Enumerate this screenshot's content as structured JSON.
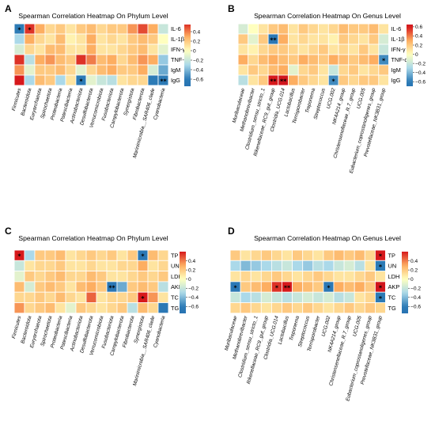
{
  "chart_data": [
    {
      "panel": "A",
      "type": "heatmap",
      "title": "Spearman Correlation Heatmap On Phylum Level",
      "rows": [
        "IL-6",
        "IL-1β",
        "IFN-γ",
        "TNF-α",
        "IgM",
        "IgG"
      ],
      "columns": [
        "Firmicutes",
        "Bacteroidota",
        "Euryarchaeota",
        "Spirochaetota",
        "Proteobacteria",
        "Patescibacteria",
        "Actinobacteriota",
        "Desulfobacterota",
        "Verrucomicrobiota",
        "Fusobacteriota",
        "Campylobacterota",
        "Synergistota",
        "Fibrobacterota",
        "Marinimicrobia__SAR406_clade",
        "Cyanobacteria"
      ],
      "values": [
        [
          -0.6,
          0.55,
          0.3,
          0.15,
          0.2,
          0.1,
          0.2,
          0.25,
          0.15,
          0.2,
          0.2,
          0.35,
          0.5,
          0.3,
          -0.2
        ],
        [
          -0.3,
          0.3,
          0.15,
          0.1,
          0.25,
          0.05,
          0.1,
          0.3,
          0.1,
          0.15,
          0.1,
          0.2,
          0.25,
          0.2,
          0.0
        ],
        [
          -0.15,
          0.15,
          0.1,
          0.25,
          0.25,
          0.1,
          0.1,
          0.3,
          0.1,
          0.1,
          0.15,
          0.2,
          0.25,
          0.1,
          -0.1
        ],
        [
          0.55,
          -0.25,
          0.3,
          0.35,
          0.25,
          0.2,
          0.55,
          0.4,
          0.25,
          0.3,
          0.15,
          0.25,
          0.35,
          0.3,
          -0.35
        ],
        [
          0.35,
          -0.1,
          0.2,
          0.2,
          0.25,
          0.15,
          -0.1,
          0.15,
          0.25,
          0.3,
          0.2,
          0.2,
          0.3,
          -0.15,
          -0.45
        ],
        [
          0.6,
          -0.3,
          0.25,
          0.2,
          -0.3,
          0.1,
          -0.6,
          -0.1,
          -0.2,
          -0.25,
          0.1,
          0.15,
          0.15,
          -0.6,
          -0.6
        ]
      ],
      "significance": [
        [
          "*",
          "*",
          "",
          "",
          "",
          "",
          "",
          "",
          "",
          "",
          "",
          "",
          "",
          "",
          ""
        ],
        [
          "",
          "",
          "",
          "",
          "",
          "",
          "",
          "",
          "",
          "",
          "",
          "",
          "",
          "",
          ""
        ],
        [
          "",
          "",
          "",
          "",
          "",
          "",
          "",
          "",
          "",
          "",
          "",
          "",
          "",
          "",
          ""
        ],
        [
          "",
          "",
          "",
          "",
          "",
          "",
          "",
          "",
          "",
          "",
          "",
          "",
          "",
          "",
          ""
        ],
        [
          "",
          "",
          "",
          "",
          "",
          "",
          "",
          "",
          "",
          "",
          "",
          "",
          "",
          "",
          ""
        ],
        [
          "",
          "",
          "",
          "",
          "",
          "",
          "*",
          "",
          "",
          "",
          "",
          "",
          "",
          "",
          "**"
        ]
      ],
      "colorbar": {
        "min": -0.75,
        "max": 0.55,
        "ticks": [
          "0.4",
          "0.2",
          "0",
          "−0.2",
          "−0.4",
          "−0.6"
        ],
        "tick_values": [
          0.4,
          0.2,
          0.0,
          -0.2,
          -0.4,
          -0.6
        ]
      },
      "legend": "right"
    },
    {
      "panel": "B",
      "type": "heatmap",
      "title": "Spearman Correlation Heatmap On Genus Level",
      "rows": [
        "IL-6",
        "IL-1β",
        "IFN-γ",
        "TNF-α",
        "IgM",
        "IgG"
      ],
      "columns": [
        "Muribaculaceae",
        "Methanobrevibacter",
        "Clostridium_sensu_stricto_1",
        "Rikenellaceae_RC9_gut_group",
        "Clostridia_UCG.014",
        "Lactobacillus",
        "Terrisporobacter",
        "Treponema",
        "Streptococcus",
        "UCG.002",
        "NK4A214_group",
        "Christensenellaceae_R.7_group",
        "UCG.005",
        "Eubacterium_coprostanoligenes_group",
        "Prevotellaceae_NK3B31_group"
      ],
      "values": [
        [
          -0.15,
          0.0,
          0.1,
          0.2,
          0.25,
          0.1,
          0.2,
          0.15,
          0.1,
          0.15,
          0.25,
          0.2,
          0.2,
          0.25,
          0.1
        ],
        [
          0.2,
          -0.1,
          0.2,
          -0.65,
          0.3,
          0.1,
          0.15,
          0.1,
          0.1,
          0.05,
          0.2,
          0.15,
          0.1,
          0.2,
          -0.15
        ],
        [
          0.1,
          0.05,
          0.15,
          0.2,
          0.2,
          0.15,
          0.1,
          0.15,
          0.2,
          0.1,
          0.15,
          0.1,
          0.2,
          0.1,
          -0.2
        ],
        [
          0.3,
          0.15,
          0.25,
          0.3,
          0.25,
          0.2,
          0.3,
          0.25,
          0.2,
          0.3,
          0.25,
          0.2,
          0.25,
          0.3,
          -0.55
        ],
        [
          0.1,
          0.2,
          0.15,
          0.25,
          0.3,
          -0.1,
          0.15,
          0.2,
          0.1,
          -0.2,
          0.15,
          0.2,
          0.1,
          0.15,
          0.2
        ],
        [
          -0.25,
          0.1,
          0.2,
          0.6,
          0.65,
          0.3,
          0.2,
          0.15,
          0.1,
          -0.55,
          0.2,
          0.15,
          0.2,
          0.2,
          0.1
        ]
      ],
      "significance": [
        [
          "",
          "",
          "",
          "",
          "",
          "",
          "",
          "",
          "",
          "",
          "",
          "",
          "",
          "",
          ""
        ],
        [
          "",
          "",
          "",
          "**",
          "",
          "",
          "",
          "",
          "",
          "",
          "",
          "",
          "",
          "",
          ""
        ],
        [
          "",
          "",
          "",
          "",
          "",
          "",
          "",
          "",
          "",
          "",
          "",
          "",
          "",
          "",
          ""
        ],
        [
          "",
          "",
          "",
          "",
          "",
          "",
          "",
          "",
          "",
          "",
          "",
          "",
          "",
          "",
          "*"
        ],
        [
          "",
          "",
          "",
          "",
          "",
          "",
          "",
          "",
          "",
          "",
          "",
          "",
          "",
          "",
          ""
        ],
        [
          "",
          "",
          "",
          "**",
          "**",
          "",
          "",
          "",
          "",
          "*",
          "",
          "",
          "",
          "",
          ""
        ]
      ],
      "colorbar": {
        "min": -0.7,
        "max": 0.65,
        "ticks": [
          "0.6",
          "0.4",
          "0.2",
          "0",
          "−0.2",
          "−0.4",
          "−0.6"
        ],
        "tick_values": [
          0.6,
          0.4,
          0.2,
          0.0,
          -0.2,
          -0.4,
          -0.6
        ]
      },
      "legend": "right"
    },
    {
      "panel": "C",
      "type": "heatmap",
      "title": "Spearman Correlation Heatmap On Phylum Level",
      "rows": [
        "TP",
        "UN",
        "LDH",
        "AKP",
        "TC",
        "TG"
      ],
      "columns": [
        "Firmicutes",
        "Bacteroidota",
        "Euryarchaeota",
        "Spirochaetota",
        "Proteobacteria",
        "Patescibacteria",
        "Actinobacteriota",
        "Desulfobacterota",
        "Verrucomicrobiota",
        "Fusobacteriota",
        "Campylobacterota",
        "Fibrobacterota",
        "Synergistota",
        "Marinimicrobia__SAR406_clade",
        "Cyanobacteria"
      ],
      "values": [
        [
          0.6,
          -0.3,
          0.2,
          0.2,
          0.25,
          0.1,
          0.15,
          0.2,
          0.15,
          0.2,
          0.1,
          0.2,
          -0.65,
          0.25,
          0.15
        ],
        [
          -0.2,
          0.1,
          0.15,
          0.15,
          0.2,
          0.1,
          0.1,
          0.15,
          0.1,
          0.1,
          0.15,
          0.15,
          0.3,
          0.1,
          0.15
        ],
        [
          -0.1,
          0.2,
          0.15,
          0.2,
          0.25,
          0.15,
          0.15,
          0.25,
          0.2,
          0.1,
          0.1,
          0.15,
          0.2,
          0.15,
          0.2
        ],
        [
          0.25,
          -0.15,
          0.2,
          0.25,
          0.2,
          0.1,
          0.25,
          0.3,
          0.2,
          -0.7,
          -0.45,
          0.2,
          0.25,
          0.2,
          -0.25
        ],
        [
          0.15,
          0.15,
          0.2,
          0.15,
          0.25,
          0.15,
          0.1,
          0.45,
          0.1,
          0.15,
          0.15,
          0.2,
          0.6,
          0.35,
          0.1
        ],
        [
          0.35,
          0.15,
          0.2,
          0.25,
          0.1,
          -0.1,
          0.2,
          0.15,
          0.1,
          0.15,
          0.2,
          -0.25,
          0.25,
          0.15,
          -0.65
        ]
      ],
      "significance": [
        [
          "*",
          "",
          "",
          "",
          "",
          "",
          "",
          "",
          "",
          "",
          "",
          "",
          "*",
          "",
          ""
        ],
        [
          "",
          "",
          "",
          "",
          "",
          "",
          "",
          "",
          "",
          "",
          "",
          "",
          "",
          "",
          ""
        ],
        [
          "",
          "",
          "",
          "",
          "",
          "",
          "",
          "",
          "",
          "",
          "",
          "",
          "",
          "",
          ""
        ],
        [
          "",
          "",
          "",
          "",
          "",
          "",
          "",
          "",
          "",
          "**",
          "",
          "",
          "",
          "",
          ""
        ],
        [
          "",
          "",
          "",
          "",
          "",
          "",
          "",
          "",
          "",
          "",
          "",
          "",
          "*",
          "",
          ""
        ],
        [
          "",
          "",
          "",
          "",
          "",
          "",
          "",
          "",
          "",
          "",
          "",
          "",
          "",
          "",
          ""
        ]
      ],
      "colorbar": {
        "min": -0.75,
        "max": 0.6,
        "ticks": [
          "0.4",
          "0.2",
          "0",
          "−0.2",
          "−0.4",
          "−0.6"
        ],
        "tick_values": [
          0.4,
          0.2,
          0.0,
          -0.2,
          -0.4,
          -0.6
        ]
      },
      "legend": "right"
    },
    {
      "panel": "D",
      "type": "heatmap",
      "title": "Spearman Correlation Heatmap On Genus Level",
      "rows": [
        "TP",
        "UN",
        "LDH",
        "AKP",
        "TC",
        "TG"
      ],
      "columns": [
        "Muribaculaceae",
        "Methanobrevibacter",
        "Clostridium_sensu_stricto_1",
        "Rikenellaceae_RC9_gut_group",
        "Clostridia_UCG.014",
        "Lactobacillus",
        "Treponema",
        "Streptococcus",
        "Terrisporobacter",
        "UCG.002",
        "NK4A214_group",
        "Christensenellaceae_R.7_group",
        "UCG.005",
        "Eubacterium_coprostanoligenes_group",
        "Prevotellaceae_NK3B31_group"
      ],
      "values": [
        [
          0.2,
          0.1,
          0.15,
          0.2,
          0.15,
          0.1,
          0.2,
          0.15,
          0.1,
          0.2,
          0.25,
          0.2,
          0.25,
          0.15,
          0.6
        ],
        [
          -0.3,
          -0.4,
          -0.35,
          -0.3,
          -0.25,
          -0.2,
          -0.3,
          -0.35,
          -0.25,
          -0.3,
          -0.2,
          -0.15,
          -0.25,
          0.1,
          -0.6
        ],
        [
          0.1,
          0.15,
          0.1,
          0.15,
          0.2,
          0.15,
          0.1,
          0.15,
          0.2,
          0.15,
          0.1,
          0.1,
          0.15,
          0.2,
          0.1
        ],
        [
          -0.65,
          0.2,
          0.25,
          0.3,
          0.55,
          0.6,
          0.3,
          0.25,
          0.2,
          -0.65,
          0.3,
          0.25,
          0.3,
          0.2,
          0.65
        ],
        [
          -0.2,
          -0.3,
          -0.25,
          -0.15,
          -0.2,
          -0.25,
          -0.2,
          -0.15,
          -0.2,
          -0.15,
          -0.25,
          -0.2,
          0.1,
          0.15,
          -0.6
        ],
        [
          0.15,
          0.2,
          0.15,
          0.1,
          0.15,
          0.2,
          0.15,
          0.2,
          0.15,
          0.1,
          0.15,
          0.2,
          0.15,
          0.2,
          0.15
        ]
      ],
      "significance": [
        [
          "",
          "",
          "",
          "",
          "",
          "",
          "",
          "",
          "",
          "",
          "",
          "",
          "",
          "",
          "*"
        ],
        [
          "",
          "",
          "",
          "",
          "",
          "",
          "",
          "",
          "",
          "",
          "",
          "",
          "",
          "",
          "*"
        ],
        [
          "",
          "",
          "",
          "",
          "",
          "",
          "",
          "",
          "",
          "",
          "",
          "",
          "",
          "",
          ""
        ],
        [
          "*",
          "",
          "",
          "",
          "*",
          "**",
          "",
          "",
          "",
          "*",
          "",
          "",
          "",
          "",
          "*"
        ],
        [
          "",
          "",
          "",
          "",
          "",
          "",
          "",
          "",
          "",
          "",
          "",
          "",
          "",
          "",
          "*"
        ],
        [
          "",
          "",
          "",
          "",
          "",
          "",
          "",
          "",
          "",
          "",
          "",
          "",
          "",
          "",
          ""
        ]
      ],
      "colorbar": {
        "min": -0.75,
        "max": 0.6,
        "ticks": [
          "0.4",
          "0.2",
          "0",
          "−0.2",
          "−0.4",
          "−0.6"
        ],
        "tick_values": [
          0.4,
          0.2,
          0.0,
          -0.2,
          -0.4,
          -0.6
        ]
      },
      "legend": "right"
    }
  ]
}
